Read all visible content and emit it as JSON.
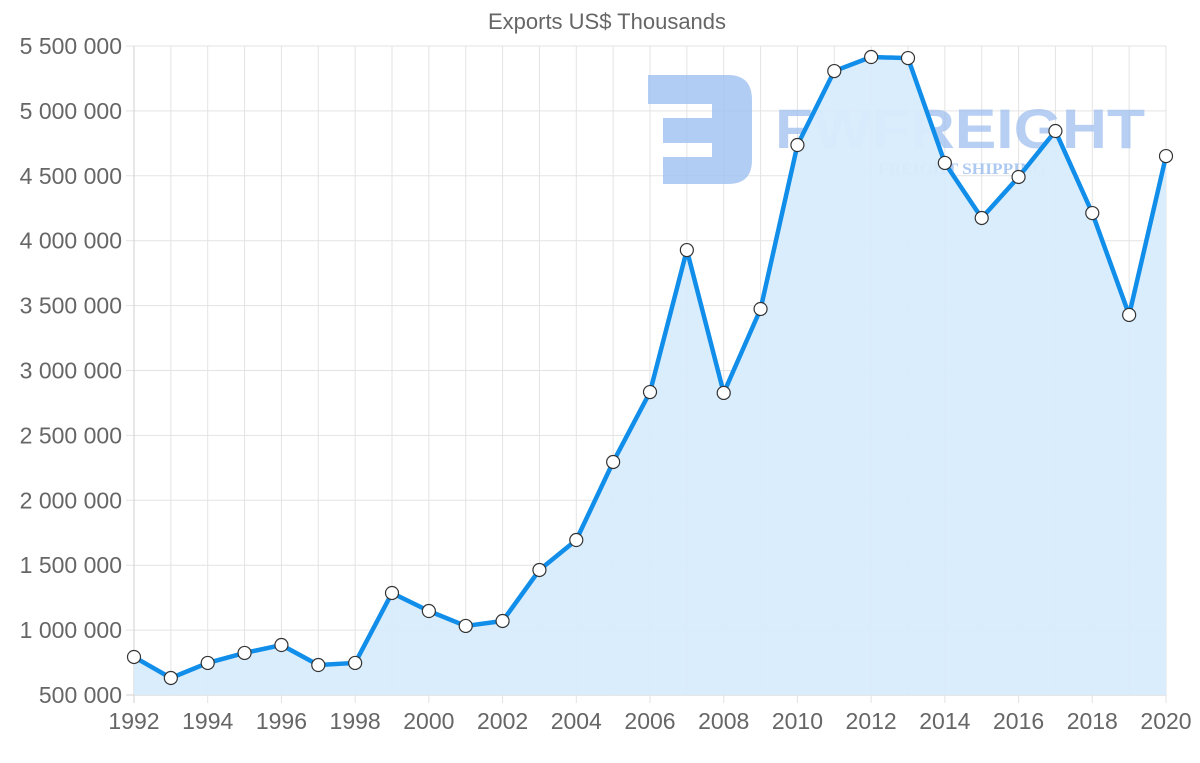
{
  "chart_data": {
    "type": "line",
    "title": "Exports US$ Thousands",
    "xlabel": "",
    "ylabel": "",
    "x": [
      1992,
      1993,
      1994,
      1995,
      1996,
      1997,
      1998,
      1999,
      2000,
      2001,
      2002,
      2003,
      2004,
      2005,
      2006,
      2007,
      2008,
      2009,
      2010,
      2011,
      2012,
      2013,
      2014,
      2015,
      2016,
      2017,
      2018,
      2019,
      2020
    ],
    "series": [
      {
        "name": "Exports US$ Thousands",
        "values": [
          793000,
          631000,
          747000,
          824000,
          885000,
          731000,
          747000,
          1286000,
          1147000,
          1032000,
          1070000,
          1463000,
          1694000,
          2295000,
          2834000,
          3928000,
          2827000,
          3474000,
          4737000,
          5307000,
          5415000,
          5407000,
          4599000,
          4175000,
          4491000,
          4845000,
          4213000,
          3428000,
          4652000
        ],
        "color": "#118ee9",
        "fill": "#d8ecfc"
      }
    ],
    "ylim": [
      500000,
      5500000
    ],
    "yticks": [
      500000,
      1000000,
      1500000,
      2000000,
      2500000,
      3000000,
      3500000,
      4000000,
      4500000,
      5000000,
      5500000
    ],
    "ytick_labels": [
      "500 000",
      "1 000 000",
      "1 500 000",
      "2 000 000",
      "2 500 000",
      "3 000 000",
      "3 500 000",
      "4 000 000",
      "4 500 000",
      "5 000 000",
      "5 500 000"
    ],
    "xticks": [
      1992,
      1994,
      1996,
      1998,
      2000,
      2002,
      2004,
      2006,
      2008,
      2010,
      2012,
      2014,
      2016,
      2018,
      2020
    ],
    "xtick_labels": [
      "1992",
      "1994",
      "1996",
      "1998",
      "2000",
      "2002",
      "2004",
      "2006",
      "2008",
      "2010",
      "2012",
      "2014",
      "2016",
      "2018",
      "2020"
    ],
    "grid": true,
    "legend": "none",
    "filled_area": true,
    "markers": "white circles with dark outline"
  },
  "watermark": {
    "brand": "FWFREIGHT",
    "tagline": "FREIGHT SHIPPING",
    "color": "#9fc0f0"
  }
}
